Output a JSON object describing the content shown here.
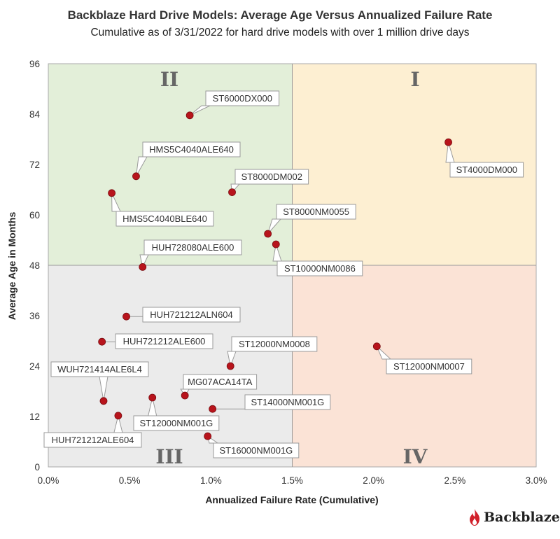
{
  "chart_data": {
    "type": "scatter",
    "title": "Backblaze Hard Drive Models: Average Age Versus Annualized Failure Rate",
    "subtitle": "Cumulative as of 3/31/2022 for hard drive models with over 1 million drive days",
    "xlabel": "Annualized Failure Rate (Cumulative)",
    "ylabel": "Average Age in Months",
    "xlim": [
      0,
      3.0
    ],
    "ylim": [
      0,
      96
    ],
    "xticks": [
      "0.0%",
      "0.5%",
      "1.0%",
      "1.5%",
      "2.0%",
      "2.5%",
      "3.0%"
    ],
    "yticks": [
      "0",
      "12",
      "24",
      "36",
      "48",
      "60",
      "72",
      "84",
      "96"
    ],
    "quadrant_split": {
      "x": 1.5,
      "y": 48
    },
    "quadrants": [
      {
        "label": "I",
        "color": "#fdefd2"
      },
      {
        "label": "II",
        "color": "#e3efd9"
      },
      {
        "label": "III",
        "color": "#ebebeb"
      },
      {
        "label": "IV",
        "color": "#fbe3d6"
      }
    ],
    "marker_color": "#b8141c",
    "points": [
      {
        "label": "ST6000DX000",
        "x": 0.87,
        "y": 83.7
      },
      {
        "label": "ST4000DM000",
        "x": 2.46,
        "y": 77.3
      },
      {
        "label": "HMS5C4040ALE640",
        "x": 0.54,
        "y": 69.2
      },
      {
        "label": "ST8000DM002",
        "x": 1.13,
        "y": 65.4
      },
      {
        "label": "HMS5C4040BLE640",
        "x": 0.39,
        "y": 65.2
      },
      {
        "label": "ST8000NM0055",
        "x": 1.35,
        "y": 55.5
      },
      {
        "label": "ST10000NM0086",
        "x": 1.4,
        "y": 53.0
      },
      {
        "label": "HUH728080ALE600",
        "x": 0.58,
        "y": 47.6
      },
      {
        "label": "HUH721212ALN604",
        "x": 0.48,
        "y": 35.8
      },
      {
        "label": "HUH721212ALE600",
        "x": 0.33,
        "y": 29.8
      },
      {
        "label": "ST12000NM0007",
        "x": 2.02,
        "y": 28.7
      },
      {
        "label": "ST12000NM0008",
        "x": 1.12,
        "y": 24.0
      },
      {
        "label": "MG07ACA14TA",
        "x": 0.84,
        "y": 17.0
      },
      {
        "label": "ST12000NM001G",
        "x": 0.64,
        "y": 16.5
      },
      {
        "label": "WUH721414ALE6L4",
        "x": 0.34,
        "y": 15.7
      },
      {
        "label": "ST14000NM001G",
        "x": 1.01,
        "y": 13.8
      },
      {
        "label": "HUH721212ALE604",
        "x": 0.43,
        "y": 12.2
      },
      {
        "label": "ST16000NM001G",
        "x": 0.98,
        "y": 7.3
      }
    ]
  },
  "brand": {
    "name": "Backblaze",
    "flame_color": "#d1202a"
  }
}
